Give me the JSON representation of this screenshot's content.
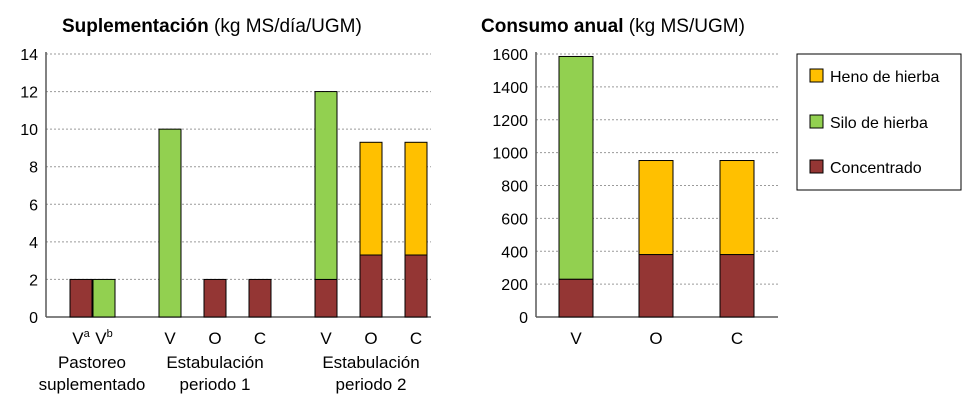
{
  "colors": {
    "heno": "#FFC000",
    "silo": "#92D050",
    "concentrado": "#943634",
    "grid": "#9a9a9a",
    "axis": "#595959"
  },
  "chart_data": [
    {
      "type": "bar",
      "stacked": true,
      "title_bold": "Suplementación",
      "title_rest": " (kg MS/día/UGM)",
      "ylim": [
        0,
        14
      ],
      "yticks": [
        0,
        2,
        4,
        6,
        8,
        10,
        12,
        14
      ],
      "grid": true,
      "categories": [
        {
          "base": "V",
          "sup": "a",
          "group": 0
        },
        {
          "base": "V",
          "sup": "b",
          "group": 0
        },
        {
          "base": "V",
          "sup": "",
          "group": 1
        },
        {
          "base": "O",
          "sup": "",
          "group": 1
        },
        {
          "base": "C",
          "sup": "",
          "group": 1
        },
        {
          "base": "V",
          "sup": "",
          "group": 2
        },
        {
          "base": "O",
          "sup": "",
          "group": 2
        },
        {
          "base": "C",
          "sup": "",
          "group": 2
        }
      ],
      "groups": [
        [
          "Pastoreo",
          "suplementado"
        ],
        [
          "Estabulación",
          "periodo 1"
        ],
        [
          "Estabulación",
          "periodo 2"
        ]
      ],
      "series": [
        {
          "key": "concentrado",
          "values": [
            2,
            0,
            0,
            2,
            2,
            2,
            3.3,
            3.3
          ]
        },
        {
          "key": "silo",
          "values": [
            0,
            2,
            10,
            0,
            0,
            10,
            0,
            0
          ]
        },
        {
          "key": "heno",
          "values": [
            0,
            0,
            0,
            0,
            0,
            0,
            6.0,
            6.0
          ]
        }
      ]
    },
    {
      "type": "bar",
      "stacked": true,
      "title_bold": "Consumo anual",
      "title_rest": " (kg MS/UGM)",
      "ylim": [
        0,
        1600
      ],
      "yticks": [
        0,
        200,
        400,
        600,
        800,
        1000,
        1200,
        1400,
        1600
      ],
      "grid": true,
      "categories": [
        {
          "base": "V",
          "sup": ""
        },
        {
          "base": "O",
          "sup": ""
        },
        {
          "base": "C",
          "sup": ""
        }
      ],
      "series": [
        {
          "key": "concentrado",
          "name": "Concentrado",
          "values": [
            230,
            380,
            380
          ]
        },
        {
          "key": "silo",
          "name": "Silo de hierba",
          "values": [
            1355,
            0,
            0
          ]
        },
        {
          "key": "heno",
          "name": "Heno de hierba",
          "values": [
            0,
            572,
            572
          ]
        }
      ],
      "legend_order": [
        "heno",
        "silo",
        "concentrado"
      ],
      "legend_position": "right"
    }
  ]
}
